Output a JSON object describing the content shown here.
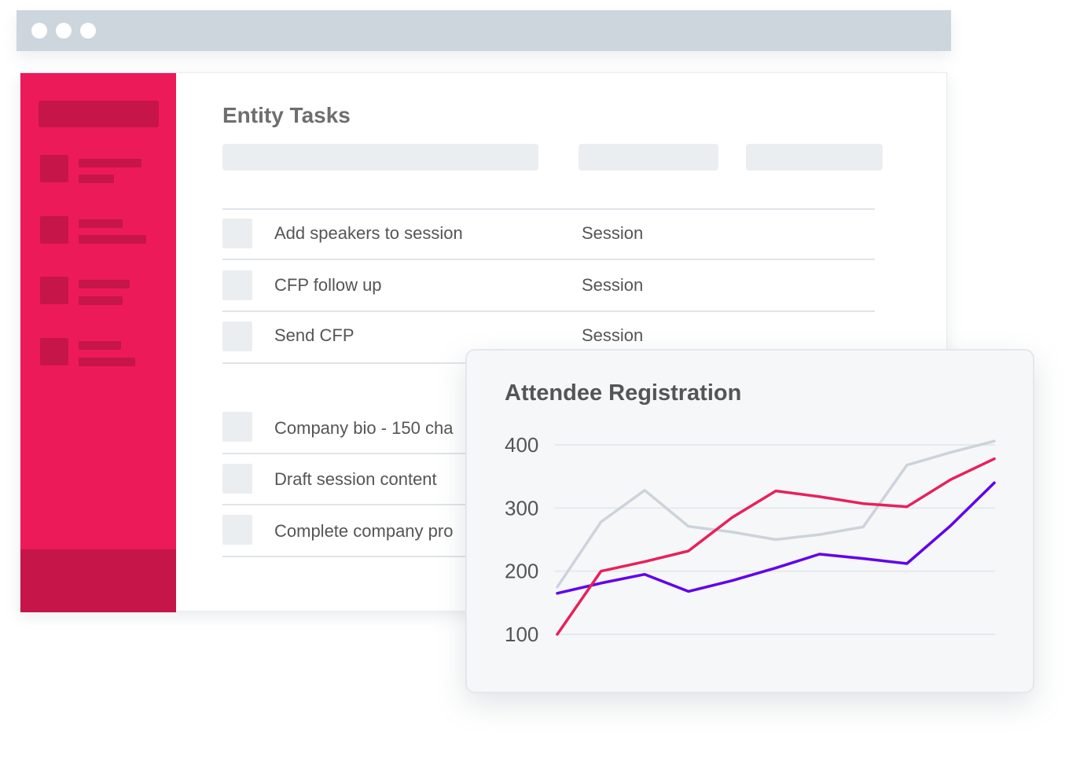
{
  "main": {
    "title": "Entity Tasks",
    "tasks_group_1": [
      {
        "name": "Add speakers to session",
        "entity": "Session"
      },
      {
        "name": "CFP follow up",
        "entity": "Session"
      },
      {
        "name": "Send CFP",
        "entity": "Session"
      }
    ],
    "tasks_group_2": [
      {
        "name": "Company bio - 150 cha"
      },
      {
        "name": "Draft session content"
      },
      {
        "name": "Complete company pro"
      }
    ]
  },
  "chart_data": {
    "type": "line",
    "title": "Attendee Registration",
    "x": [
      0,
      1,
      2,
      3,
      4,
      5,
      6,
      7,
      8,
      9,
      10
    ],
    "ylim": [
      100,
      400
    ],
    "yticks": [
      100,
      200,
      300,
      400
    ],
    "grid": true,
    "colors": {
      "series_1": "#e8205c",
      "series_2": "#6200ea",
      "series_3": "#cdd3da"
    },
    "series": [
      {
        "values": [
          100,
          200,
          215,
          232,
          285,
          327,
          318,
          307,
          302,
          345,
          378
        ]
      },
      {
        "values": [
          165,
          181,
          195,
          168,
          185,
          205,
          227,
          220,
          212,
          272,
          340
        ]
      },
      {
        "values": [
          175,
          278,
          328,
          271,
          262,
          250,
          258,
          270,
          368,
          388,
          406
        ]
      }
    ]
  }
}
